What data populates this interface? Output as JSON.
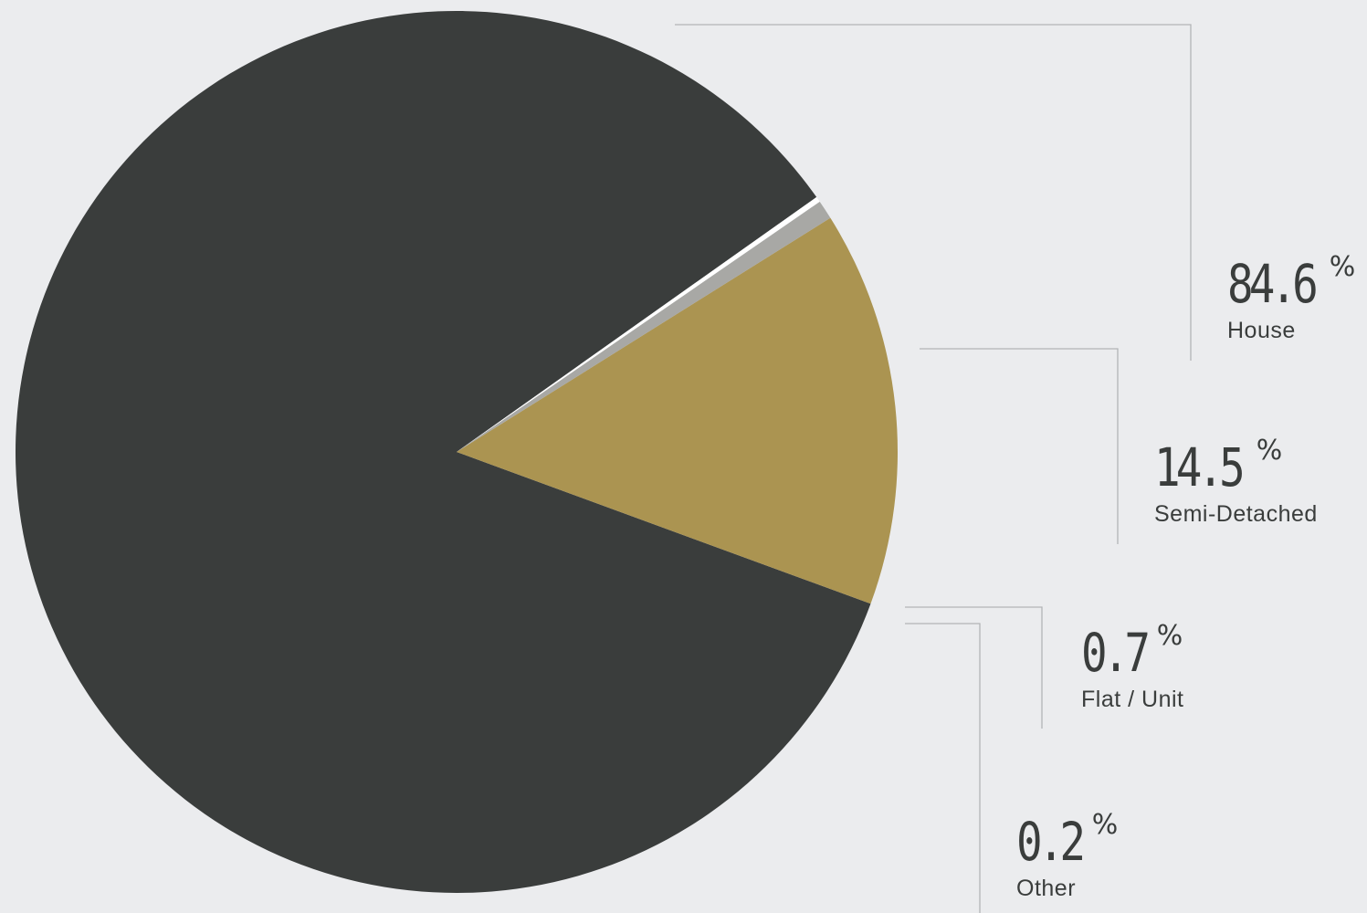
{
  "chart_data": {
    "type": "pie",
    "slices": [
      {
        "label": "House",
        "value": 84.6,
        "color": "#3a3d3c"
      },
      {
        "label": "Semi-Detached",
        "value": 14.5,
        "color": "#ab9451"
      },
      {
        "label": "Flat / Unit",
        "value": 0.7,
        "color": "#a8a8a5"
      },
      {
        "label": "Other",
        "value": 0.2,
        "color": "#ffffff"
      }
    ],
    "value_suffix": "%",
    "background": "#ebecee",
    "leader_color": "#b2b4b6"
  },
  "labels": [
    {
      "value": "84.6",
      "suffix": "%",
      "name": "House"
    },
    {
      "value": "14.5",
      "suffix": "%",
      "name": "Semi-Detached"
    },
    {
      "value": "0.7",
      "suffix": "%",
      "name": "Flat / Unit"
    },
    {
      "value": "0.2",
      "suffix": "%",
      "name": "Other"
    }
  ]
}
